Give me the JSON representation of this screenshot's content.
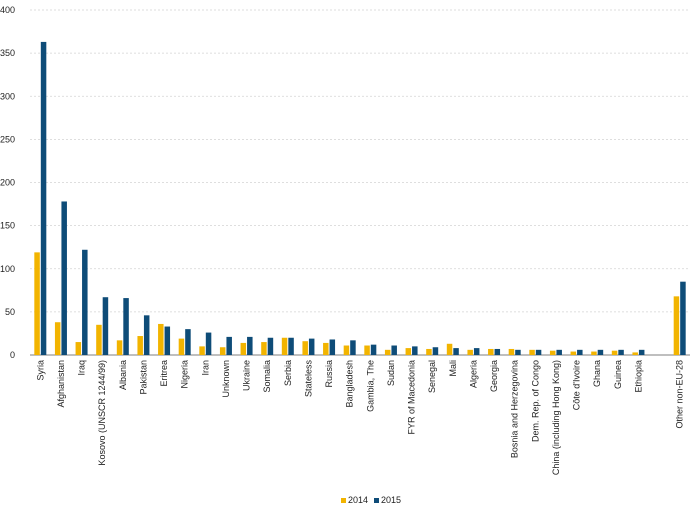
{
  "chart_data": {
    "type": "bar",
    "categories": [
      "Syria",
      "Afghanistan",
      "Iraq",
      "Kosovo (UNSCR 1244/99)",
      "Albania",
      "Pakistan",
      "Eritrea",
      "Nigeria",
      "Iran",
      "Unknown",
      "Ukraine",
      "Somalia",
      "Serbia",
      "Stateless",
      "Russia",
      "Bangladesh",
      "Gambia, The",
      "Sudan",
      "FYR of Macedonia",
      "Senegal",
      "Mali",
      "Algeria",
      "Georgia",
      "Bosnia and Herzegovina",
      "Dem. Rep. of Congo",
      "China (including Hong Kong)",
      "Côte d'Ivoire",
      "Ghana",
      "Guinea",
      "Ethiopia",
      "",
      "Other non-EU-28"
    ],
    "series": [
      {
        "name": "2014",
        "color": "#f2b400",
        "values": [
          119,
          38,
          15,
          35,
          17,
          22,
          36,
          19,
          10,
          9,
          14,
          15,
          20,
          16,
          14,
          11,
          11,
          6,
          8,
          7,
          13,
          6,
          7,
          7,
          6,
          5,
          4,
          4,
          5,
          3,
          null,
          68
        ]
      },
      {
        "name": "2015",
        "color": "#0e4c78",
        "values": [
          363,
          178,
          122,
          67,
          66,
          46,
          33,
          30,
          26,
          21,
          21,
          20,
          20,
          19,
          18,
          17,
          12,
          11,
          10,
          9,
          8,
          8,
          7,
          6,
          6,
          6,
          6,
          6,
          6,
          6,
          null,
          85
        ]
      }
    ],
    "ylim": [
      0,
      400
    ],
    "yticks": [
      0,
      50,
      100,
      150,
      200,
      250,
      300,
      350,
      400
    ],
    "grid": true,
    "legend": "bottom-center",
    "title": "",
    "xlabel": "",
    "ylabel": ""
  }
}
